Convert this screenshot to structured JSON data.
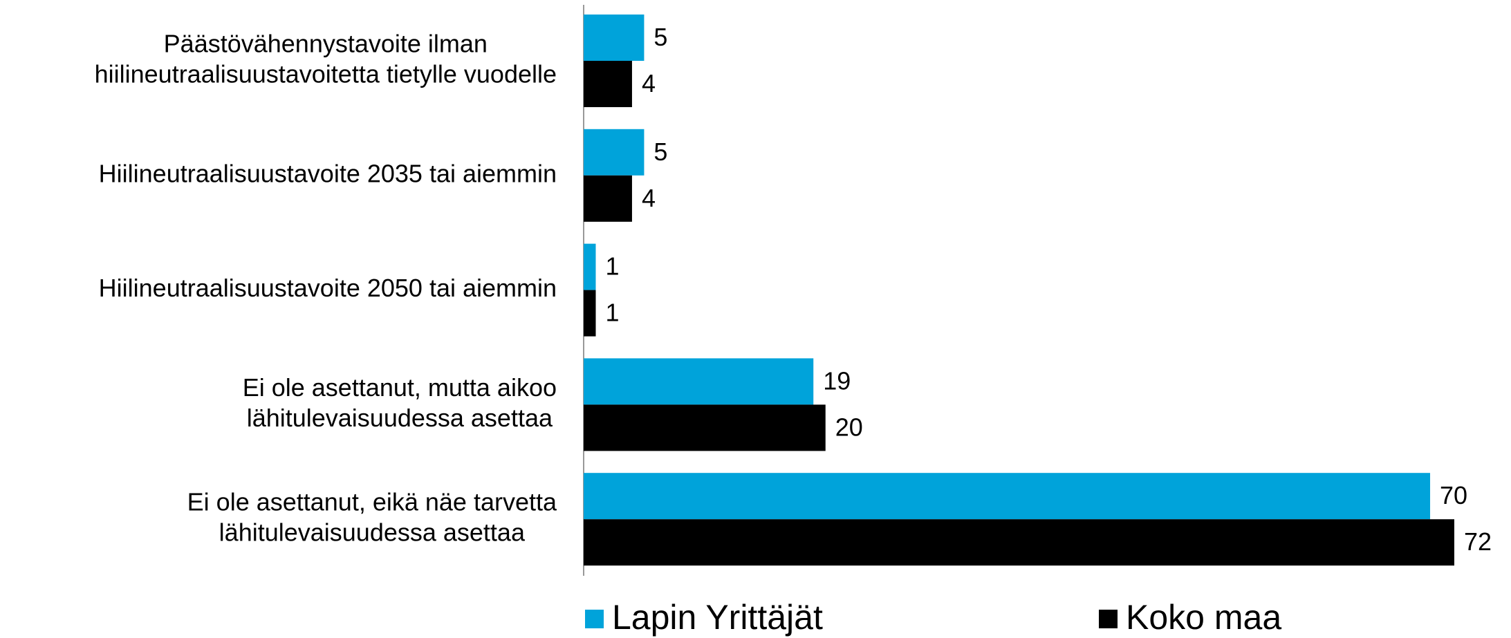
{
  "chart_data": {
    "type": "bar",
    "orientation": "horizontal",
    "categories": [
      [
        "Päästövähennystavoite ilman",
        "hiilineutraalisuustavoitetta tietylle vuodelle"
      ],
      [
        "Hiilineutraalisuustavoite 2035 tai aiemmin"
      ],
      [
        "Hiilineutraalisuustavoite 2050 tai aiemmin"
      ],
      [
        "Ei ole asettanut, mutta aikoo",
        "lähitulevaisuudessa asettaa"
      ],
      [
        "Ei ole asettanut, eikä näe tarvetta",
        "lähitulevaisuudessa asettaa"
      ]
    ],
    "series": [
      {
        "name": "Lapin Yrittäjät",
        "color": "#00a3da",
        "values": [
          5,
          5,
          1,
          19,
          70
        ]
      },
      {
        "name": "Koko maa",
        "color": "#000000",
        "values": [
          4,
          4,
          1,
          20,
          72
        ]
      }
    ],
    "legend": "bottom"
  }
}
